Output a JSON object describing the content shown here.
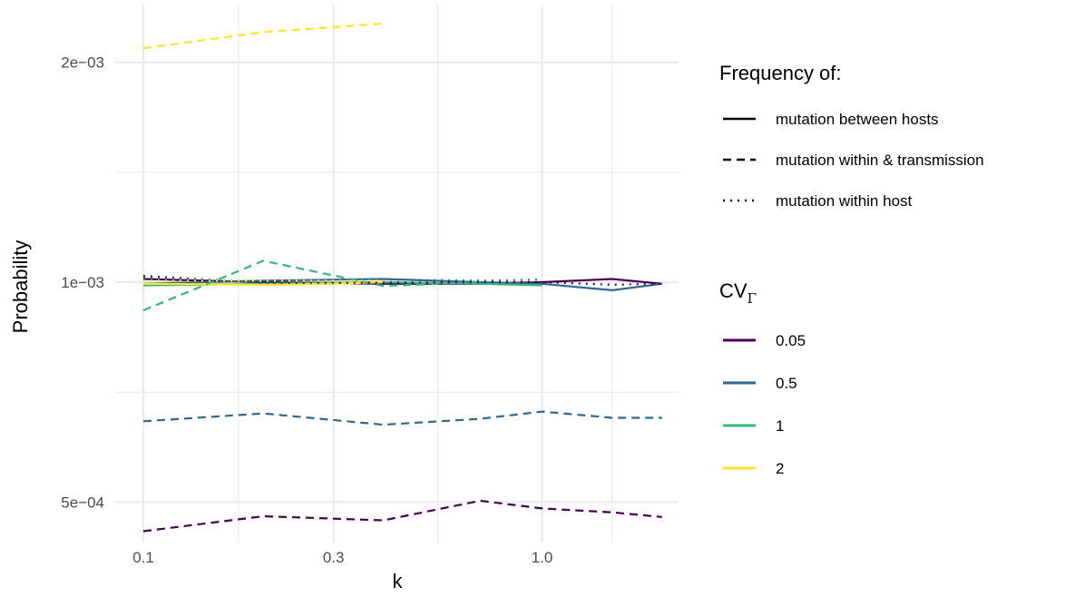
{
  "chart_data": {
    "type": "line",
    "title": "",
    "xlabel": "k",
    "ylabel": "Probability",
    "x_scale": "log10",
    "y_scale": "log10",
    "xlim": [
      0.085,
      2.2
    ],
    "ylim": [
      0.00044,
      0.0024
    ],
    "x_ticks": [
      {
        "value": 0.1,
        "label": "0.1"
      },
      {
        "value": 0.3,
        "label": "0.3"
      },
      {
        "value": 1.0,
        "label": "1.0"
      }
    ],
    "x_minor_ticks": [
      0.1732,
      0.5477,
      1.5
    ],
    "y_ticks": [
      {
        "value": 0.0005,
        "label": "5e−04"
      },
      {
        "value": 0.001,
        "label": "1e−03"
      },
      {
        "value": 0.002,
        "label": "2e−03"
      }
    ],
    "y_minor_ticks": [
      0.000707,
      0.001414
    ],
    "grid": true,
    "colors": {
      "0.05": "#440154",
      "0.5": "#31688E",
      "1": "#35B779",
      "2": "#FDE725",
      "grid": "#ebebeb"
    },
    "linetypes": {
      "between": "solid",
      "within_transmission": "dashed",
      "within_host": "dotted"
    },
    "legend": {
      "placement": "right",
      "frequency": {
        "title": "Frequency of:",
        "items": [
          {
            "key": "between",
            "label": "mutation between hosts"
          },
          {
            "key": "within_transmission",
            "label": "mutation within & transmission"
          },
          {
            "key": "within_host",
            "label": "mutation within host"
          }
        ]
      },
      "cv": {
        "title_main": "CV",
        "title_sub": "Γ",
        "items": [
          {
            "key": "0.05",
            "label": "0.05"
          },
          {
            "key": "0.5",
            "label": "0.5"
          },
          {
            "key": "1",
            "label": "1"
          },
          {
            "key": "2",
            "label": "2"
          }
        ]
      }
    },
    "series": [
      {
        "cv": "0.05",
        "type": "between",
        "x": [
          0.1,
          0.2,
          0.4,
          0.7,
          1.0,
          1.5,
          2.0
        ],
        "y": [
          0.00101,
          0.001,
          0.000995,
          0.000995,
          0.001,
          0.00101,
          0.000995
        ]
      },
      {
        "cv": "0.5",
        "type": "between",
        "x": [
          0.1,
          0.2,
          0.4,
          0.7,
          1.0,
          1.5,
          2.0
        ],
        "y": [
          0.000995,
          0.001005,
          0.00101,
          0.001,
          0.000995,
          0.000975,
          0.000995
        ]
      },
      {
        "cv": "1",
        "type": "between",
        "x": [
          0.1,
          0.2,
          0.4,
          0.7,
          1.0
        ],
        "y": [
          0.00099,
          0.000995,
          0.001,
          0.000995,
          0.00099
        ]
      },
      {
        "cv": "2",
        "type": "between",
        "x": [
          0.1,
          0.2,
          0.3,
          0.4
        ],
        "y": [
          0.000995,
          0.000992,
          0.000995,
          0.001
        ]
      },
      {
        "cv": "0.05",
        "type": "within_transmission",
        "x": [
          0.1,
          0.2,
          0.4,
          0.7,
          1.0,
          1.5,
          2.0
        ],
        "y": [
          0.000456,
          0.000478,
          0.000472,
          0.000502,
          0.00049,
          0.000484,
          0.000477
        ]
      },
      {
        "cv": "0.5",
        "type": "within_transmission",
        "x": [
          0.1,
          0.2,
          0.4,
          0.7,
          1.0,
          1.5,
          2.0
        ],
        "y": [
          0.000645,
          0.000661,
          0.000638,
          0.00065,
          0.000665,
          0.000652,
          0.000652
        ]
      },
      {
        "cv": "1",
        "type": "within_transmission",
        "x": [
          0.1,
          0.2,
          0.4,
          0.7
        ],
        "y": [
          0.000915,
          0.00107,
          0.000988,
          0.001
        ]
      },
      {
        "cv": "2",
        "type": "within_transmission",
        "x": [
          0.1,
          0.2,
          0.4
        ],
        "y": [
          0.00209,
          0.0022,
          0.00226
        ]
      },
      {
        "cv": "0.05",
        "type": "within_host",
        "x": [
          0.1,
          0.2,
          0.4,
          0.7,
          1.0,
          1.5,
          2.0
        ],
        "y": [
          0.00102,
          0.000998,
          0.000998,
          0.001,
          0.001,
          0.000992,
          0.000995
        ]
      },
      {
        "cv": "0.5",
        "type": "within_host",
        "x": [
          0.1,
          0.2,
          0.4,
          0.7,
          1.0
        ],
        "y": [
          0.001015,
          0.001002,
          0.001008,
          0.001005,
          0.001008
        ]
      },
      {
        "cv": "1",
        "type": "within_host",
        "x": [
          0.1,
          0.2,
          0.4
        ],
        "y": [
          0.001005,
          0.001002,
          0.001005
        ]
      },
      {
        "cv": "2",
        "type": "within_host",
        "x": [
          0.1,
          0.2,
          0.4
        ],
        "y": [
          0.001005,
          0.001005,
          0.001005
        ]
      }
    ]
  }
}
